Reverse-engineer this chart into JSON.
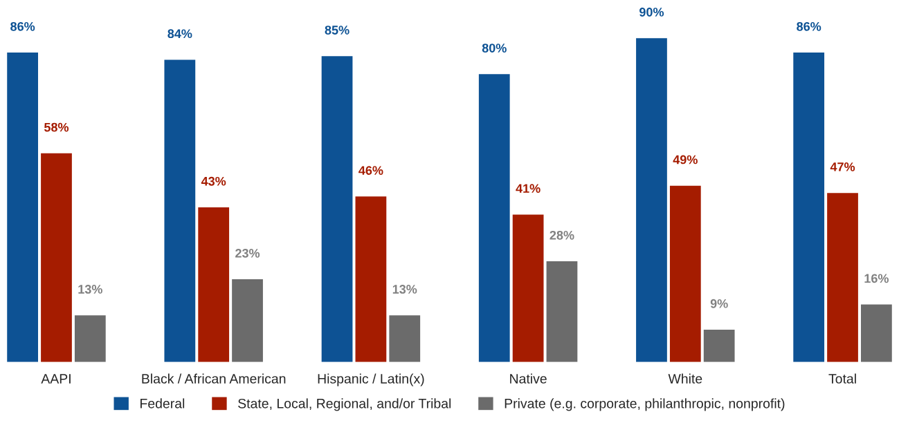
{
  "chart_data": {
    "type": "bar",
    "categories": [
      "AAPI",
      "Black / African American",
      "Hispanic / Latin(x)",
      "Native",
      "White",
      "Total"
    ],
    "series": [
      {
        "name": "Federal",
        "color": "#0d5294",
        "values": [
          86,
          84,
          85,
          80,
          90,
          86
        ],
        "value_labels": [
          "86%",
          "84%",
          "85%",
          "80%",
          "90%",
          "86%"
        ]
      },
      {
        "name": "State, Local, Regional, and/or Tribal",
        "color": "#a51c00",
        "values": [
          58,
          43,
          46,
          41,
          49,
          47
        ],
        "value_labels": [
          "58%",
          "43%",
          "46%",
          "41%",
          "49%",
          "47%"
        ]
      },
      {
        "name": "Private (e.g. corporate, philanthropic, nonprofit)",
        "color": "#6b6b6b",
        "values": [
          13,
          23,
          13,
          28,
          9,
          16
        ],
        "value_labels": [
          "13%",
          "23%",
          "13%",
          "28%",
          "9%",
          "16%"
        ]
      }
    ],
    "tick_labels": "x",
    "grid": false,
    "legend": "bottom"
  }
}
